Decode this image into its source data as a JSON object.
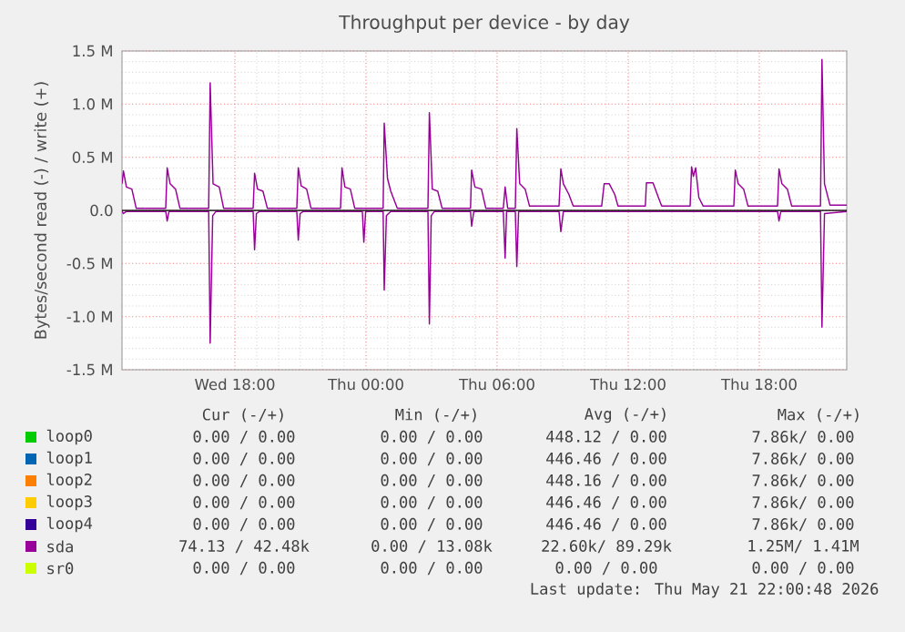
{
  "chart_data": {
    "type": "line",
    "title": "Throughput per device - by day",
    "ylabel": "Bytes/second read (-) / write (+)",
    "xlim": [
      "2026-05-20T12:50",
      "2026-05-21T22:00"
    ],
    "ylim": [
      -1500000,
      1500000
    ],
    "xticks": [
      {
        "value": "2026-05-20T18:00",
        "label": "Wed 18:00"
      },
      {
        "value": "2026-05-21T00:00",
        "label": "Thu 00:00"
      },
      {
        "value": "2026-05-21T06:00",
        "label": "Thu 06:00"
      },
      {
        "value": "2026-05-21T12:00",
        "label": "Thu 12:00"
      },
      {
        "value": "2026-05-21T18:00",
        "label": "Thu 18:00"
      }
    ],
    "yticks": [
      {
        "value": -1500000,
        "label": "-1.5 M"
      },
      {
        "value": -1000000,
        "label": "-1.0 M"
      },
      {
        "value": -500000,
        "label": "-0.5 M"
      },
      {
        "value": 0,
        "label": "0.0"
      },
      {
        "value": 500000,
        "label": "0.5 M"
      },
      {
        "value": 1000000,
        "label": "1.0 M"
      },
      {
        "value": 1500000,
        "label": "1.5 M"
      }
    ],
    "grid": true,
    "legend": "bottom",
    "marker": "none",
    "line_style": "solid",
    "series": [
      {
        "name": "loop0",
        "color": "#00cc00"
      },
      {
        "name": "loop1",
        "color": "#0066b3"
      },
      {
        "name": "loop2",
        "color": "#ff8000"
      },
      {
        "name": "loop3",
        "color": "#ffcc00"
      },
      {
        "name": "loop4",
        "color": "#330099"
      },
      {
        "name": "sda",
        "color": "#990099",
        "x": [
          "2026-05-20T12:50",
          "2026-05-20T12:54",
          "2026-05-20T13:02",
          "2026-05-20T13:17",
          "2026-05-20T13:29",
          "2026-05-20T14:50",
          "2026-05-20T14:54",
          "2026-05-20T15:02",
          "2026-05-20T15:17",
          "2026-05-20T15:29",
          "2026-05-20T16:48",
          "2026-05-20T16:52",
          "2026-05-20T17:00",
          "2026-05-20T17:17",
          "2026-05-20T17:29",
          "2026-05-20T18:50",
          "2026-05-20T18:54",
          "2026-05-20T19:02",
          "2026-05-20T19:17",
          "2026-05-20T19:29",
          "2026-05-20T20:50",
          "2026-05-20T20:54",
          "2026-05-20T21:02",
          "2026-05-20T21:17",
          "2026-05-20T21:29",
          "2026-05-20T22:50",
          "2026-05-20T22:54",
          "2026-05-20T23:02",
          "2026-05-20T23:17",
          "2026-05-20T23:29",
          "2026-05-21T00:47",
          "2026-05-21T00:50",
          "2026-05-21T00:59",
          "2026-05-21T01:08",
          "2026-05-21T01:26",
          "2026-05-21T02:50",
          "2026-05-21T02:54",
          "2026-05-21T03:02",
          "2026-05-21T03:17",
          "2026-05-21T03:29",
          "2026-05-21T04:47",
          "2026-05-21T04:50",
          "2026-05-21T04:59",
          "2026-05-21T05:17",
          "2026-05-21T05:29",
          "2026-05-21T06:17",
          "2026-05-21T06:22",
          "2026-05-21T06:29",
          "2026-05-21T06:50",
          "2026-05-21T06:54",
          "2026-05-21T07:02",
          "2026-05-21T07:17",
          "2026-05-21T07:29",
          "2026-05-21T08:50",
          "2026-05-21T08:55",
          "2026-05-21T09:02",
          "2026-05-21T09:17",
          "2026-05-21T09:29",
          "2026-05-21T10:47",
          "2026-05-21T10:54",
          "2026-05-21T11:08",
          "2026-05-21T11:23",
          "2026-05-21T11:32",
          "2026-05-21T12:47",
          "2026-05-21T12:50",
          "2026-05-21T13:08",
          "2026-05-21T13:23",
          "2026-05-21T13:32",
          "2026-05-21T14:50",
          "2026-05-21T14:54",
          "2026-05-21T14:59",
          "2026-05-21T15:05",
          "2026-05-21T15:14",
          "2026-05-21T15:26",
          "2026-05-21T16:50",
          "2026-05-21T16:54",
          "2026-05-21T17:02",
          "2026-05-21T17:17",
          "2026-05-21T17:29",
          "2026-05-21T18:50",
          "2026-05-21T18:54",
          "2026-05-21T19:02",
          "2026-05-21T19:17",
          "2026-05-21T19:29",
          "2026-05-21T20:48",
          "2026-05-21T20:52",
          "2026-05-21T20:59",
          "2026-05-21T21:14",
          "2026-05-21T22:00"
        ],
        "values": [
          250000,
          370000,
          220000,
          200000,
          20000,
          20000,
          400000,
          250000,
          200000,
          20000,
          20000,
          1200000,
          250000,
          220000,
          20000,
          20000,
          350000,
          200000,
          180000,
          20000,
          20000,
          400000,
          230000,
          200000,
          20000,
          20000,
          400000,
          220000,
          200000,
          20000,
          20000,
          820000,
          300000,
          180000,
          20000,
          20000,
          920000,
          200000,
          180000,
          20000,
          20000,
          380000,
          220000,
          200000,
          20000,
          20000,
          220000,
          20000,
          20000,
          770000,
          250000,
          200000,
          40000,
          40000,
          390000,
          250000,
          150000,
          40000,
          40000,
          250000,
          250000,
          150000,
          40000,
          40000,
          260000,
          260000,
          120000,
          40000,
          40000,
          410000,
          320000,
          400000,
          120000,
          40000,
          40000,
          380000,
          250000,
          200000,
          40000,
          40000,
          390000,
          250000,
          200000,
          40000,
          40000,
          1420000,
          250000,
          50000,
          50000
        ]
      },
      {
        "name": "sr0",
        "color": "#ccff00"
      },
      {
        "color": "#990099",
        "x": [
          "2026-05-20T12:50",
          "2026-05-20T12:54",
          "2026-05-20T13:02",
          "2026-05-20T14:50",
          "2026-05-20T14:54",
          "2026-05-20T14:59",
          "2026-05-20T16:48",
          "2026-05-20T16:52",
          "2026-05-20T16:59",
          "2026-05-20T17:08",
          "2026-05-20T18:50",
          "2026-05-20T18:54",
          "2026-05-20T18:59",
          "2026-05-20T19:08",
          "2026-05-20T20:50",
          "2026-05-20T20:54",
          "2026-05-20T20:59",
          "2026-05-20T21:08",
          "2026-05-20T23:50",
          "2026-05-20T23:54",
          "2026-05-20T23:59",
          "2026-05-21T00:47",
          "2026-05-21T00:50",
          "2026-05-21T00:56",
          "2026-05-21T01:08",
          "2026-05-21T02:50",
          "2026-05-21T02:54",
          "2026-05-21T02:59",
          "2026-05-21T03:08",
          "2026-05-21T04:47",
          "2026-05-21T04:50",
          "2026-05-21T04:56",
          "2026-05-21T06:17",
          "2026-05-21T06:22",
          "2026-05-21T06:26",
          "2026-05-21T06:50",
          "2026-05-21T06:54",
          "2026-05-21T06:59",
          "2026-05-21T08:50",
          "2026-05-21T08:55",
          "2026-05-21T09:02",
          "2026-05-21T18:50",
          "2026-05-21T18:54",
          "2026-05-21T18:59",
          "2026-05-21T20:48",
          "2026-05-21T20:52",
          "2026-05-21T20:59",
          "2026-05-21T22:00"
        ],
        "values": [
          -10000,
          -30000,
          -10000,
          -10000,
          -100000,
          -10000,
          -10000,
          -1250000,
          -50000,
          -10000,
          -10000,
          -370000,
          -30000,
          -10000,
          -10000,
          -280000,
          -30000,
          -10000,
          -10000,
          -300000,
          -10000,
          -10000,
          -750000,
          -50000,
          -10000,
          -10000,
          -1070000,
          -50000,
          -10000,
          -10000,
          -150000,
          -10000,
          -10000,
          -450000,
          -10000,
          -10000,
          -530000,
          -10000,
          -10000,
          -200000,
          -10000,
          -10000,
          -100000,
          -10000,
          -10000,
          -1100000,
          -30000,
          -10000
        ]
      }
    ],
    "annotations": [
      "Cur (-/+)",
      "Min (-/+)",
      "Avg (-/+)",
      "Max (-/+)",
      "0.00 / 0.00",
      "0.00 / 0.00",
      "448.12 / 0.00",
      "7.86k/ 0.00",
      "0.00 / 0.00",
      "0.00 / 0.00",
      "446.46 / 0.00",
      "7.86k/ 0.00",
      "0.00 / 0.00",
      "0.00 / 0.00",
      "448.16 / 0.00",
      "7.86k/ 0.00",
      "0.00 / 0.00",
      "0.00 / 0.00",
      "446.46 / 0.00",
      "7.86k/ 0.00",
      "0.00 / 0.00",
      "0.00 / 0.00",
      "446.46 / 0.00",
      "7.86k/ 0.00",
      "74.13 / 42.48k",
      "0.00 / 13.08k",
      "22.60k/ 89.29k",
      "1.25M/ 1.41M",
      "0.00 / 0.00",
      "0.00 / 0.00",
      "0.00 / 0.00",
      "0.00 / 0.00",
      "Last update: Thu May 21 22:00:48 2026"
    ]
  }
}
